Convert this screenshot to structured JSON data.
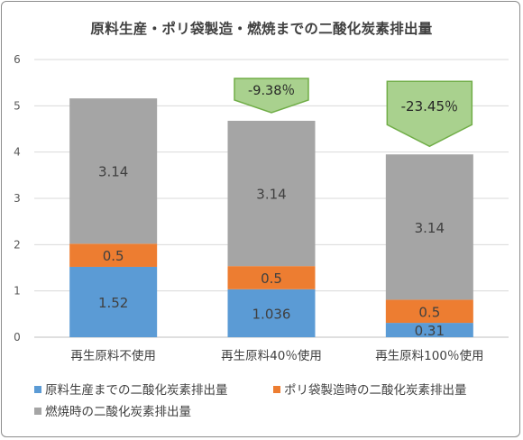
{
  "chart_data": {
    "type": "bar",
    "stacked": true,
    "title": "原料生産・ポリ袋製造・燃焼までの二酸化炭素排出量",
    "categories": [
      "再生原料不使用",
      "再生原料40％使用",
      "再生原料100％使用"
    ],
    "series": [
      {
        "name": "原料生産までの二酸化炭素排出量",
        "color": "#5b9bd5",
        "values": [
          1.52,
          1.036,
          0.31
        ],
        "labels": [
          "1.52",
          "1.036",
          "0.31"
        ]
      },
      {
        "name": "ポリ袋製造時の二酸化炭素排出量",
        "color": "#ed7d31",
        "values": [
          0.5,
          0.5,
          0.5
        ],
        "labels": [
          "0.5",
          "0.5",
          "0.5"
        ]
      },
      {
        "name": "燃焼時の二酸化炭素排出量",
        "color": "#a5a5a5",
        "values": [
          3.14,
          3.14,
          3.14
        ],
        "labels": [
          "3.14",
          "3.14",
          "3.14"
        ]
      }
    ],
    "ylim": [
      0,
      6
    ],
    "yticks": [
      0,
      1,
      2,
      3,
      4,
      5,
      6
    ],
    "grid": true,
    "legend_position": "bottom",
    "annotations": [
      {
        "category_index": 1,
        "text": "-9.38％",
        "color": "#a9d18e",
        "stroke": "#70ad47"
      },
      {
        "category_index": 2,
        "text": "-23.45％",
        "color": "#a9d18e",
        "stroke": "#70ad47"
      }
    ]
  }
}
